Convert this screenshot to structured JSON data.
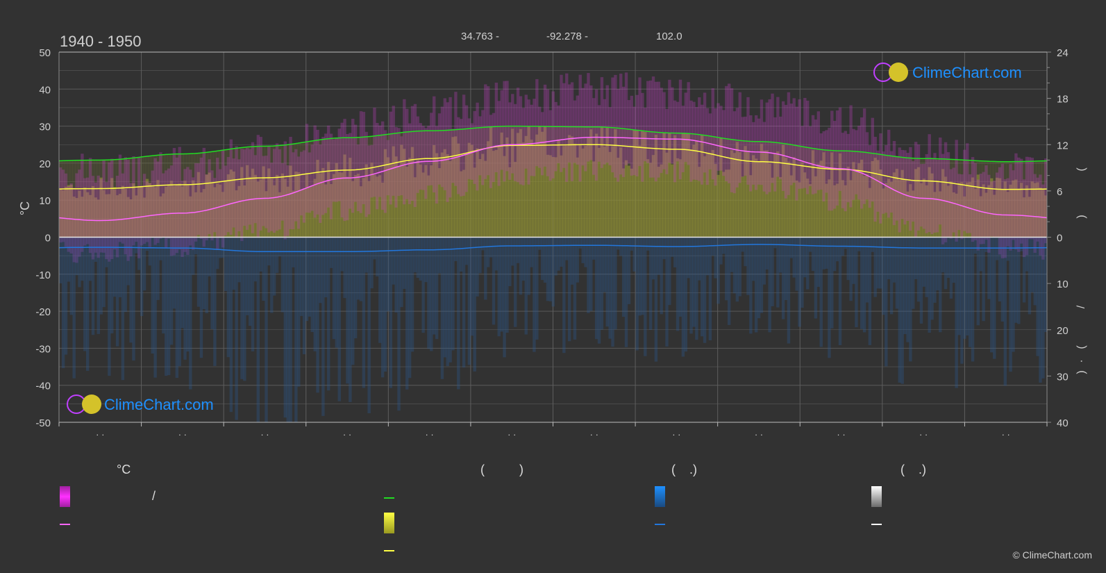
{
  "header": {
    "period": "1940 - 1950",
    "lat": "34.763 -",
    "lon": "-92.278 -",
    "elevation": "102.0"
  },
  "logo_text": "ClimeChart.com",
  "copyright": "© ClimeChart.com",
  "colors": {
    "background": "#323232",
    "daylight": "#22dd22",
    "sunshine": "#ffff44",
    "temp_mean": "#ff66ff",
    "temp_band": "#cc33cc",
    "precip": "#2277dd",
    "snow": "#ffffff",
    "logo": "#1e90ff"
  },
  "chart_data": {
    "type": "area",
    "months": [
      "· ·",
      "· ·",
      "· ·",
      "· ·",
      "· ·",
      "· ·",
      "· ·",
      "· ·",
      "· ·",
      "· ·",
      "· ·",
      "· ·"
    ],
    "y_left": {
      "label": "°C",
      "range": [
        -50,
        50
      ],
      "ticks": [
        50,
        40,
        30,
        20,
        10,
        0,
        -10,
        -20,
        -30,
        -40,
        -50
      ]
    },
    "y_right_top": {
      "range": [
        0,
        24
      ],
      "ticks": [
        24,
        18,
        12,
        6,
        0
      ],
      "label_glyphs": [
        "(",
        ")"
      ]
    },
    "y_right_bottom": {
      "range": [
        0,
        40
      ],
      "ticks": [
        0,
        10,
        20,
        30,
        40
      ],
      "label_glyphs": [
        "/",
        "(",
        "·",
        ")"
      ]
    },
    "grid": true,
    "series": [
      {
        "id": "daylight",
        "unit": "h",
        "values": [
          10.0,
          10.8,
          11.8,
          12.9,
          13.8,
          14.4,
          14.3,
          13.5,
          12.4,
          11.2,
          10.2,
          9.8
        ]
      },
      {
        "id": "sunshine",
        "unit": "h",
        "values": [
          6.3,
          6.8,
          7.7,
          8.7,
          10.2,
          11.9,
          12.0,
          11.4,
          9.8,
          8.8,
          7.3,
          6.2
        ]
      },
      {
        "id": "temp_mean",
        "unit": "°C",
        "values": [
          4.5,
          6.5,
          10.5,
          16.0,
          20.5,
          25.0,
          27.0,
          26.5,
          23.0,
          18.5,
          10.5,
          6.0
        ]
      },
      {
        "id": "precip",
        "unit": "mm",
        "values": [
          5.6,
          6.0,
          8.0,
          8.0,
          7.0,
          4.8,
          4.5,
          5.2,
          4.0,
          5.0,
          6.0,
          6.0
        ]
      }
    ]
  },
  "legend": {
    "col1_head": "°C",
    "col1_sep": "/",
    "col2_head": "(          )",
    "col3_head": "(    .)",
    "col4_head": "(    .)"
  }
}
